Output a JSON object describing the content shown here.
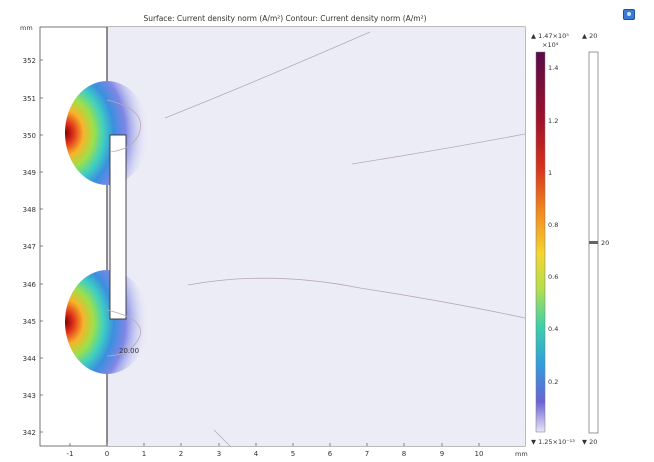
{
  "title": "Surface: Current density norm (A/m²)  Contour: Current density norm (A/m²)",
  "axes": {
    "y_unit": "mm",
    "x_unit": "mm",
    "x_ticks": [
      "-1",
      "0",
      "1",
      "2",
      "3",
      "4",
      "5",
      "6",
      "7",
      "8",
      "9",
      "10"
    ],
    "y_ticks": [
      "352",
      "351",
      "350",
      "349",
      "348",
      "347",
      "346",
      "345",
      "344",
      "343",
      "342"
    ]
  },
  "colorbar": {
    "max_label": "▲ 1.47×10⁵",
    "multiplier": "×10⁴",
    "ticks": [
      "1.4",
      "1.2",
      "1",
      "0.8",
      "0.6",
      "0.4",
      "0.2"
    ],
    "min_label": "▼ 1.25×10⁻¹³"
  },
  "contour_bar": {
    "max_label": "▲ 20",
    "level_label": "20",
    "min_label": "▼ 20"
  },
  "contour_annotation": "20.00",
  "colors": {
    "background": "#ececf7",
    "hot": "#7a0000",
    "outline": "#333333",
    "contour": "#b8a8b8"
  },
  "toolbar": {
    "icon": "camera-icon"
  }
}
